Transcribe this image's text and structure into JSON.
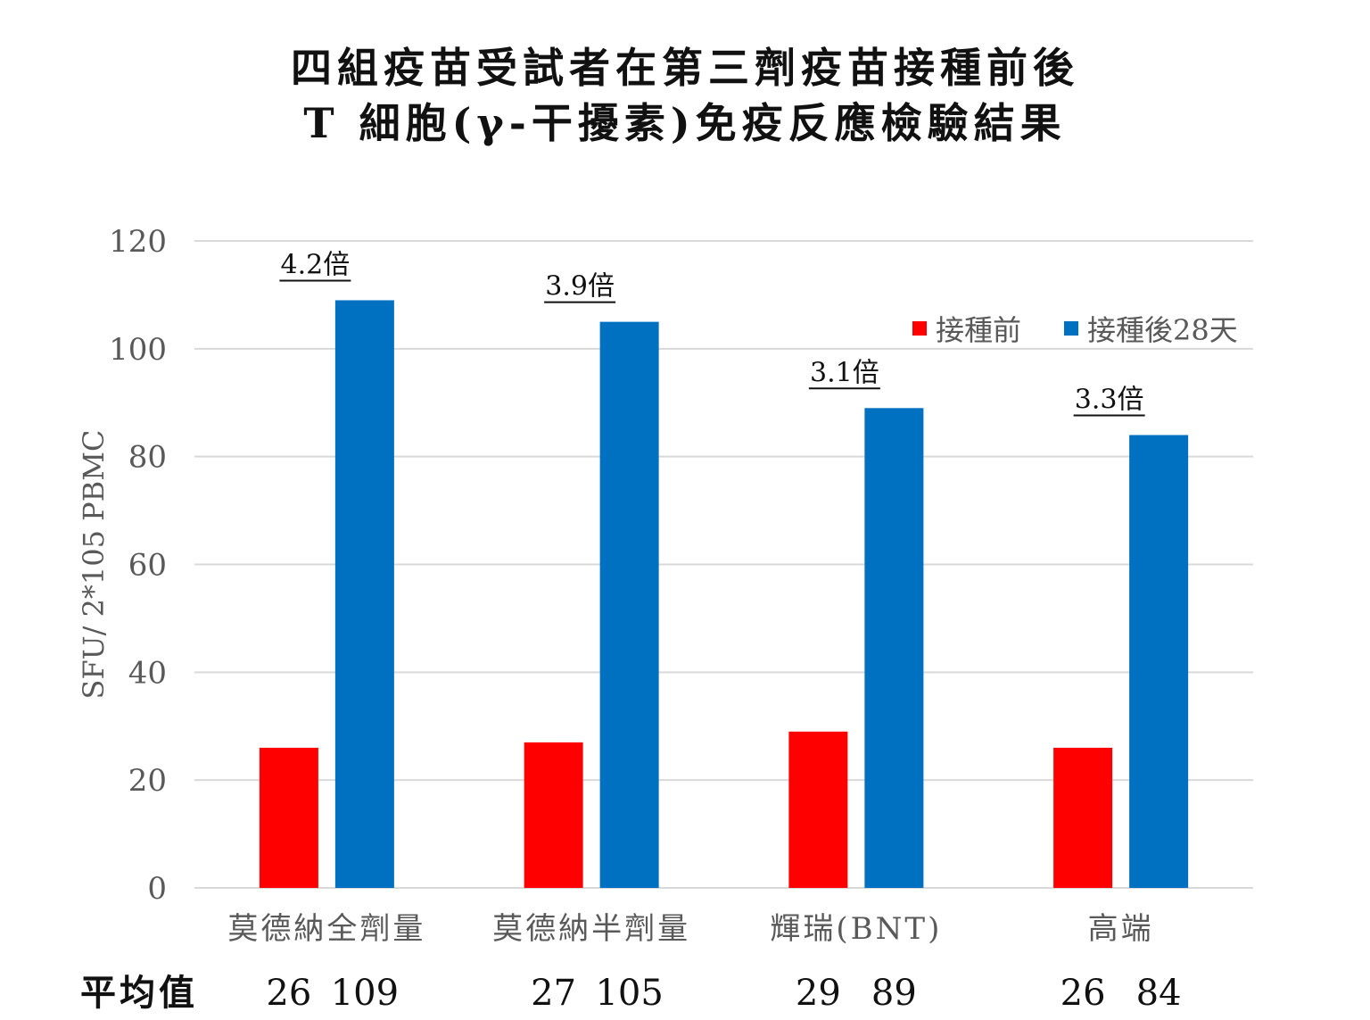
{
  "chart_data": {
    "type": "bar",
    "title_lines": [
      "四組疫苗受試者在第三劑疫苗接種前後",
      "T 細胞(γ-干擾素)免疫反應檢驗結果"
    ],
    "ylabel": "SFU/ 2*105 PBMC",
    "ylim": [
      0,
      120
    ],
    "yticks": [
      "0",
      "20",
      "40",
      "60",
      "80",
      "100",
      "120"
    ],
    "grid": true,
    "legend_position": "top-right",
    "categories": [
      "莫德納全劑量",
      "莫德納半劑量",
      "輝瑞(BNT)",
      "高端"
    ],
    "series": [
      {
        "name": "接種前",
        "color": "#ff0000",
        "values": [
          26,
          27,
          29,
          26
        ]
      },
      {
        "name": "接種後28天",
        "color": "#0070c0",
        "values": [
          109,
          105,
          89,
          84
        ]
      }
    ],
    "fold_labels": [
      "4.2倍",
      "3.9倍",
      "3.1倍",
      "3.3倍"
    ],
    "mean_row": {
      "label": "平均值",
      "values": [
        [
          "26",
          "109"
        ],
        [
          "27",
          "105"
        ],
        [
          "29",
          "89"
        ],
        [
          "26",
          "84"
        ]
      ]
    }
  }
}
